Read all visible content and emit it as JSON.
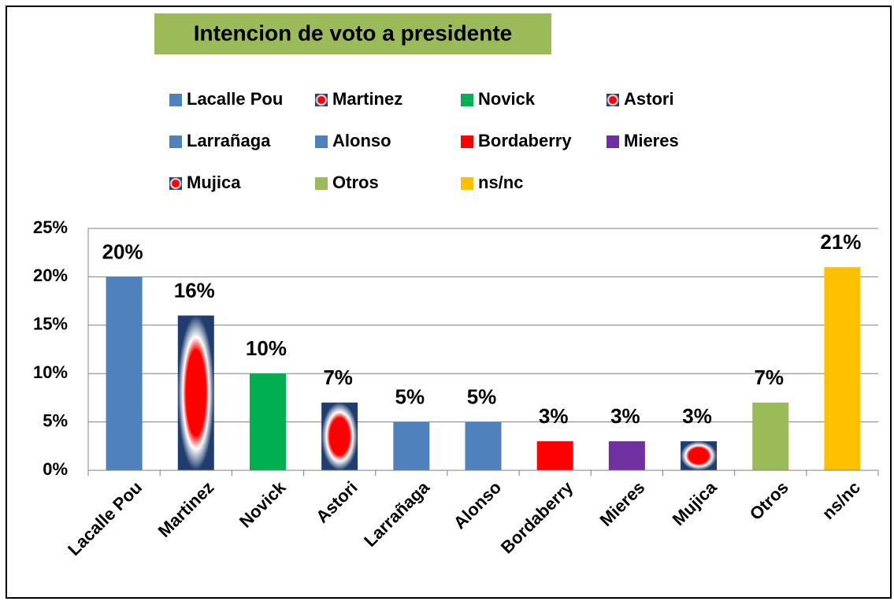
{
  "chart_data": {
    "type": "bar",
    "title": "Intencion de voto a presidente",
    "categories": [
      "Lacalle Pou",
      "Martinez",
      "Novick",
      "Astori",
      "Larrañaga",
      "Alonso",
      "Bordaberry",
      "Mieres",
      "Mujica",
      "Otros",
      "ns/nc"
    ],
    "values": [
      20,
      16,
      10,
      7,
      5,
      5,
      3,
      3,
      3,
      7,
      21
    ],
    "value_labels": [
      "20%",
      "16%",
      "10%",
      "7%",
      "5%",
      "5%",
      "3%",
      "3%",
      "3%",
      "7%",
      "21%"
    ],
    "colors": [
      "#4f81bd",
      "#ff0000",
      "#00b050",
      "#ff0000",
      "#4f81bd",
      "#4f81bd",
      "#ff0000",
      "#7030a0",
      "#ff0000",
      "#9bbb59",
      "#ffc000"
    ],
    "bar_styles": [
      "solid",
      "radial",
      "solid",
      "radial",
      "solid",
      "solid",
      "solid",
      "solid",
      "radial",
      "solid",
      "solid"
    ],
    "ylim": [
      0,
      25
    ],
    "yticks": [
      {
        "value": 0,
        "label": "0%"
      },
      {
        "value": 5,
        "label": "5%"
      },
      {
        "value": 10,
        "label": "10%"
      },
      {
        "value": 15,
        "label": "15%"
      },
      {
        "value": 20,
        "label": "20%"
      },
      {
        "value": 25,
        "label": "25%"
      }
    ],
    "grid": true,
    "legend": "top"
  }
}
